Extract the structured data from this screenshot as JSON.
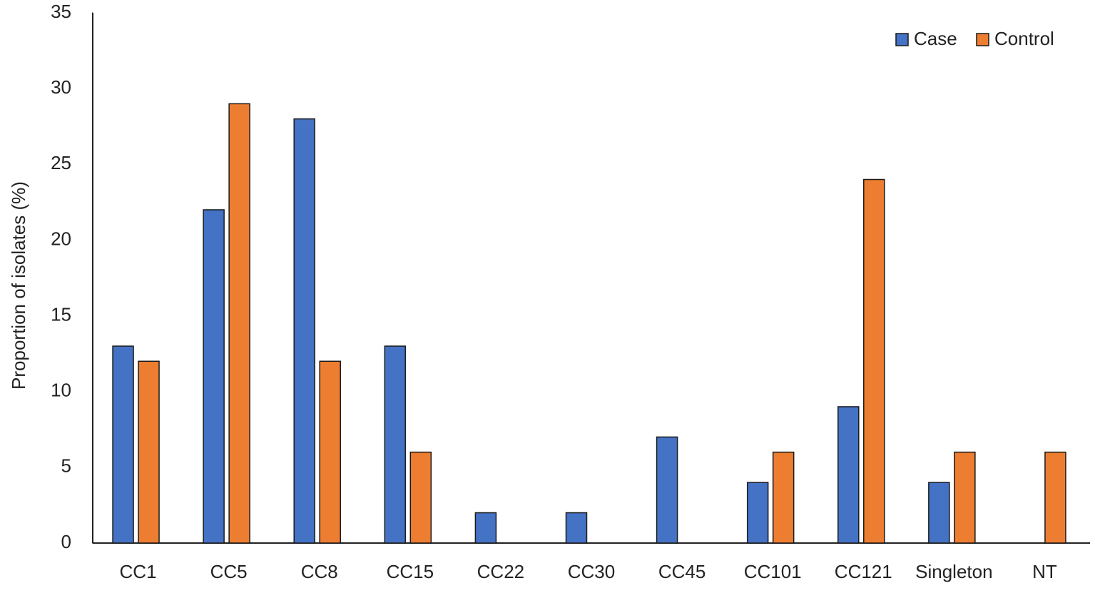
{
  "chart_data": {
    "type": "bar",
    "y_label": "Proportion of isolates (%)",
    "categories": [
      "CC1",
      "CC5",
      "CC8",
      "CC15",
      "CC22",
      "CC30",
      "CC45",
      "CC101",
      "CC121",
      "Singleton",
      "NT"
    ],
    "series": [
      {
        "name": "Case",
        "color": "#4472c4",
        "values": [
          13,
          22,
          28,
          13,
          2,
          2,
          7,
          4,
          9,
          4,
          0
        ]
      },
      {
        "name": "Control",
        "color": "#ed7d31",
        "values": [
          12,
          29,
          12,
          6,
          0,
          0,
          0,
          6,
          24,
          6,
          6
        ]
      }
    ],
    "ylim": [
      0,
      35
    ],
    "yticks": [
      0,
      5,
      10,
      15,
      20,
      25,
      30,
      35
    ],
    "grid": false,
    "legend": "upper right"
  }
}
